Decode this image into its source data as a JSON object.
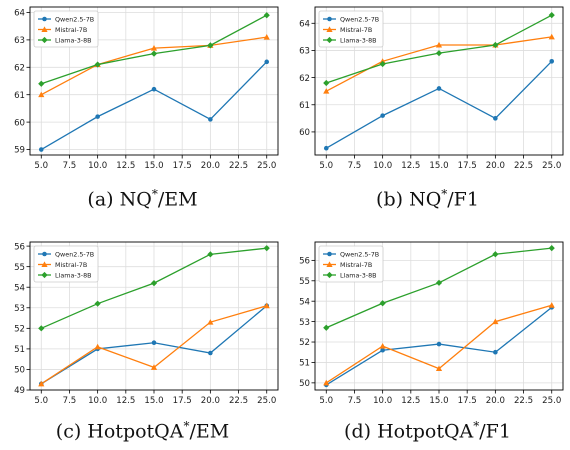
{
  "legend_labels": [
    "Qwen2.5-7B",
    "Mistral-7B",
    "Llama-3-8B"
  ],
  "colors": {
    "Qwen2.5-7B": "#1f77b4",
    "Mistral-7B": "#ff7f0e",
    "Llama-3-8B": "#2ca02c",
    "grid": "#dddddd",
    "axis": "#000000"
  },
  "captions": [
    {
      "letter": "(a)",
      "dataset": "NQ",
      "sup": "*",
      "metric": "/EM"
    },
    {
      "letter": "(b)",
      "dataset": "NQ",
      "sup": "*",
      "metric": "/F1"
    },
    {
      "letter": "(c)",
      "dataset": "HotpotQA",
      "sup": "*",
      "metric": "/EM"
    },
    {
      "letter": "(d)",
      "dataset": "HotpotQA",
      "sup": "*",
      "metric": "/F1"
    }
  ],
  "chart_data": [
    {
      "type": "line",
      "x": [
        5.0,
        10.0,
        15.0,
        20.0,
        25.0
      ],
      "xticks": [
        "5.0",
        "7.5",
        "10.0",
        "12.5",
        "15.0",
        "17.5",
        "20.0",
        "22.5",
        "25.0"
      ],
      "xlim": [
        4.0,
        26.0
      ],
      "ylim": [
        58.8,
        64.2
      ],
      "yticks": [
        59,
        60,
        61,
        62,
        63,
        64
      ],
      "legend": "top-left",
      "grid": true,
      "series": [
        {
          "name": "Qwen2.5-7B",
          "values": [
            59.0,
            60.2,
            61.2,
            60.1,
            62.2
          ]
        },
        {
          "name": "Mistral-7B",
          "values": [
            61.0,
            62.1,
            62.7,
            62.8,
            63.1
          ]
        },
        {
          "name": "Llama-3-8B",
          "values": [
            61.4,
            62.1,
            62.5,
            62.8,
            63.9
          ]
        }
      ]
    },
    {
      "type": "line",
      "x": [
        5.0,
        10.0,
        15.0,
        20.0,
        25.0
      ],
      "xticks": [
        "5.0",
        "7.5",
        "10.0",
        "12.5",
        "15.0",
        "17.5",
        "20.0",
        "22.5",
        "25.0"
      ],
      "xlim": [
        4.0,
        26.0
      ],
      "ylim": [
        59.15,
        64.6
      ],
      "yticks": [
        60,
        61,
        62,
        63,
        64
      ],
      "legend": "top-left",
      "grid": true,
      "series": [
        {
          "name": "Qwen2.5-7B",
          "values": [
            59.4,
            60.6,
            61.6,
            60.5,
            62.6
          ]
        },
        {
          "name": "Mistral-7B",
          "values": [
            61.5,
            62.6,
            63.2,
            63.2,
            63.5
          ]
        },
        {
          "name": "Llama-3-8B",
          "values": [
            61.8,
            62.5,
            62.9,
            63.2,
            64.3
          ]
        }
      ]
    },
    {
      "type": "line",
      "x": [
        5.0,
        10.0,
        15.0,
        20.0,
        25.0
      ],
      "xticks": [
        "5.0",
        "7.5",
        "10.0",
        "12.5",
        "15.0",
        "17.5",
        "20.0",
        "22.5",
        "25.0"
      ],
      "xlim": [
        4.0,
        26.0
      ],
      "ylim": [
        49.0,
        56.2
      ],
      "yticks": [
        49,
        50,
        51,
        52,
        53,
        54,
        55,
        56
      ],
      "legend": "top-left",
      "grid": true,
      "series": [
        {
          "name": "Qwen2.5-7B",
          "values": [
            49.3,
            51.0,
            51.3,
            50.8,
            53.1
          ]
        },
        {
          "name": "Mistral-7B",
          "values": [
            49.3,
            51.1,
            50.1,
            52.3,
            53.1
          ]
        },
        {
          "name": "Llama-3-8B",
          "values": [
            52.0,
            53.2,
            54.2,
            55.6,
            55.9
          ]
        }
      ]
    },
    {
      "type": "line",
      "x": [
        5.0,
        10.0,
        15.0,
        20.0,
        25.0
      ],
      "xticks": [
        "5.0",
        "7.5",
        "10.0",
        "12.5",
        "15.0",
        "17.5",
        "20.0",
        "22.5",
        "25.0"
      ],
      "xlim": [
        4.0,
        26.0
      ],
      "ylim": [
        49.65,
        56.9
      ],
      "yticks": [
        50,
        51,
        52,
        53,
        54,
        55,
        56
      ],
      "legend": "top-left",
      "grid": true,
      "series": [
        {
          "name": "Qwen2.5-7B",
          "values": [
            49.9,
            51.6,
            51.9,
            51.5,
            53.7
          ]
        },
        {
          "name": "Mistral-7B",
          "values": [
            50.0,
            51.8,
            50.7,
            53.0,
            53.8
          ]
        },
        {
          "name": "Llama-3-8B",
          "values": [
            52.7,
            53.9,
            54.9,
            56.3,
            56.6
          ]
        }
      ]
    }
  ]
}
